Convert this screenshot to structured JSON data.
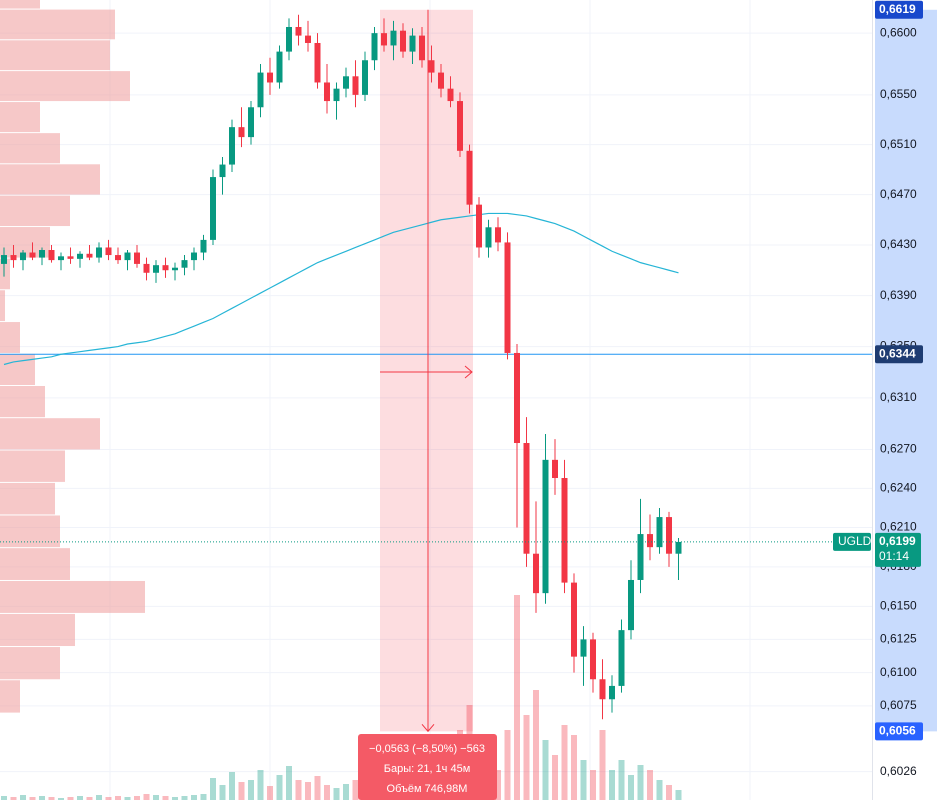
{
  "chart_data": {
    "type": "candlestick",
    "symbol": "UGLD",
    "log_scale": true,
    "grid": true,
    "ylim": [
      0.6005,
      0.6627
    ],
    "yticks": [
      {
        "value": 0.66,
        "label": "0,6600"
      },
      {
        "value": 0.655,
        "label": "0,6550"
      },
      {
        "value": 0.651,
        "label": "0,6510"
      },
      {
        "value": 0.647,
        "label": "0,6470"
      },
      {
        "value": 0.643,
        "label": "0,6430"
      },
      {
        "value": 0.639,
        "label": "0,6390"
      },
      {
        "value": 0.635,
        "label": "0,6350"
      },
      {
        "value": 0.631,
        "label": "0,6310"
      },
      {
        "value": 0.627,
        "label": "0,6270"
      },
      {
        "value": 0.624,
        "label": "0,6240"
      },
      {
        "value": 0.621,
        "label": "0,6210"
      },
      {
        "value": 0.618,
        "label": "0,6180"
      },
      {
        "value": 0.615,
        "label": "0,6150"
      },
      {
        "value": 0.6125,
        "label": "0,6125"
      },
      {
        "value": 0.61,
        "label": "0,6100"
      },
      {
        "value": 0.6075,
        "label": "0,6075"
      },
      {
        "value": 0.6026,
        "label": "0,6026"
      }
    ],
    "up_color": "#089981",
    "down_color": "#f23645",
    "candles": [
      [
        0.6415,
        0.6428,
        0.6405,
        0.6422
      ],
      [
        0.6422,
        0.643,
        0.6412,
        0.6418
      ],
      [
        0.6418,
        0.6426,
        0.641,
        0.6424
      ],
      [
        0.6424,
        0.6432,
        0.6418,
        0.642
      ],
      [
        0.642,
        0.6428,
        0.6414,
        0.6426
      ],
      [
        0.6426,
        0.643,
        0.6416,
        0.6418
      ],
      [
        0.6418,
        0.6424,
        0.641,
        0.6421
      ],
      [
        0.6421,
        0.6428,
        0.6415,
        0.6419
      ],
      [
        0.6419,
        0.6425,
        0.6412,
        0.6423
      ],
      [
        0.6423,
        0.643,
        0.6418,
        0.642
      ],
      [
        0.642,
        0.6432,
        0.6416,
        0.6428
      ],
      [
        0.6428,
        0.6434,
        0.6418,
        0.6422
      ],
      [
        0.6422,
        0.6428,
        0.6415,
        0.6418
      ],
      [
        0.6418,
        0.6426,
        0.641,
        0.6424
      ],
      [
        0.6424,
        0.643,
        0.6412,
        0.6415
      ],
      [
        0.6415,
        0.642,
        0.6402,
        0.6408
      ],
      [
        0.6408,
        0.6418,
        0.64,
        0.6414
      ],
      [
        0.6414,
        0.642,
        0.6404,
        0.641
      ],
      [
        0.641,
        0.6416,
        0.6402,
        0.6412
      ],
      [
        0.6412,
        0.6422,
        0.6406,
        0.6418
      ],
      [
        0.6418,
        0.6428,
        0.641,
        0.6424
      ],
      [
        0.6424,
        0.6438,
        0.6418,
        0.6434
      ],
      [
        0.6434,
        0.649,
        0.643,
        0.6484
      ],
      [
        0.6484,
        0.65,
        0.647,
        0.6494
      ],
      [
        0.6494,
        0.653,
        0.6488,
        0.6524
      ],
      [
        0.6524,
        0.654,
        0.6508,
        0.6516
      ],
      [
        0.6516,
        0.6545,
        0.651,
        0.654
      ],
      [
        0.654,
        0.6575,
        0.6532,
        0.6568
      ],
      [
        0.6568,
        0.658,
        0.655,
        0.656
      ],
      [
        0.656,
        0.659,
        0.6555,
        0.6585
      ],
      [
        0.6585,
        0.6612,
        0.6578,
        0.6605
      ],
      [
        0.6605,
        0.6615,
        0.659,
        0.6598
      ],
      [
        0.6598,
        0.661,
        0.6585,
        0.6592
      ],
      [
        0.6592,
        0.66,
        0.6555,
        0.656
      ],
      [
        0.656,
        0.6575,
        0.6535,
        0.6545
      ],
      [
        0.6545,
        0.656,
        0.653,
        0.6555
      ],
      [
        0.6555,
        0.6572,
        0.6548,
        0.6565
      ],
      [
        0.6565,
        0.6578,
        0.654,
        0.655
      ],
      [
        0.655,
        0.6585,
        0.6545,
        0.6578
      ],
      [
        0.6578,
        0.6605,
        0.657,
        0.66
      ],
      [
        0.66,
        0.6612,
        0.6585,
        0.659
      ],
      [
        0.659,
        0.661,
        0.6578,
        0.6602
      ],
      [
        0.6602,
        0.6608,
        0.658,
        0.6585
      ],
      [
        0.6585,
        0.6604,
        0.6575,
        0.6598
      ],
      [
        0.6598,
        0.6605,
        0.6572,
        0.6578
      ],
      [
        0.6578,
        0.659,
        0.656,
        0.6568
      ],
      [
        0.6568,
        0.6575,
        0.6548,
        0.6555
      ],
      [
        0.6555,
        0.6565,
        0.654,
        0.6545
      ],
      [
        0.6545,
        0.6552,
        0.65,
        0.6505
      ],
      [
        0.6505,
        0.651,
        0.6455,
        0.6462
      ],
      [
        0.6462,
        0.6468,
        0.642,
        0.6428
      ],
      [
        0.6428,
        0.645,
        0.642,
        0.6444
      ],
      [
        0.6444,
        0.6452,
        0.6425,
        0.6432
      ],
      [
        0.6432,
        0.644,
        0.634,
        0.6345
      ],
      [
        0.6345,
        0.6352,
        0.621,
        0.6275
      ],
      [
        0.6275,
        0.6295,
        0.618,
        0.619
      ],
      [
        0.619,
        0.623,
        0.6145,
        0.616
      ],
      [
        0.616,
        0.6282,
        0.6152,
        0.6262
      ],
      [
        0.6262,
        0.6278,
        0.6235,
        0.6248
      ],
      [
        0.6248,
        0.6262,
        0.616,
        0.6168
      ],
      [
        0.6168,
        0.6175,
        0.61,
        0.6112
      ],
      [
        0.6112,
        0.6135,
        0.609,
        0.6125
      ],
      [
        0.6125,
        0.613,
        0.6085,
        0.6095
      ],
      [
        0.6095,
        0.611,
        0.6065,
        0.608
      ],
      [
        0.608,
        0.6098,
        0.607,
        0.609
      ],
      [
        0.609,
        0.614,
        0.6085,
        0.6132
      ],
      [
        0.6132,
        0.6185,
        0.6125,
        0.617
      ],
      [
        0.617,
        0.6232,
        0.616,
        0.6205
      ],
      [
        0.6205,
        0.622,
        0.6185,
        0.6195
      ],
      [
        0.6195,
        0.6225,
        0.619,
        0.6218
      ],
      [
        0.6218,
        0.6222,
        0.618,
        0.619
      ],
      [
        0.619,
        0.6202,
        0.617,
        0.6199
      ]
    ],
    "volumes": [
      4,
      3,
      5,
      3,
      4,
      3,
      2,
      3,
      4,
      3,
      5,
      3,
      4,
      3,
      4,
      6,
      5,
      4,
      3,
      4,
      5,
      6,
      22,
      15,
      28,
      18,
      20,
      30,
      14,
      25,
      34,
      20,
      18,
      24,
      15,
      12,
      16,
      20,
      22,
      26,
      12,
      18,
      14,
      10,
      16,
      20,
      14,
      18,
      70,
      95,
      40,
      25,
      30,
      70,
      205,
      85,
      110,
      60,
      45,
      75,
      65,
      40,
      30,
      70,
      30,
      40,
      25,
      35,
      30,
      20,
      15,
      10
    ],
    "moving_average": {
      "color": "#26b5d6",
      "values": [
        0.6336,
        0.6338,
        0.6339,
        0.634,
        0.6341,
        0.6342,
        0.6344,
        0.6345,
        0.6346,
        0.6347,
        0.6348,
        0.6349,
        0.635,
        0.6352,
        0.6353,
        0.6354,
        0.6356,
        0.6358,
        0.636,
        0.6363,
        0.6366,
        0.6369,
        0.6372,
        0.6376,
        0.638,
        0.6384,
        0.6388,
        0.6392,
        0.6396,
        0.64,
        0.6404,
        0.6408,
        0.6412,
        0.6416,
        0.6419,
        0.6422,
        0.6425,
        0.6428,
        0.6431,
        0.6434,
        0.6437,
        0.644,
        0.6442,
        0.6444,
        0.6446,
        0.6448,
        0.645,
        0.6451,
        0.6452,
        0.6453,
        0.6454,
        0.6455,
        0.6455,
        0.6455,
        0.6454,
        0.6453,
        0.6451,
        0.6449,
        0.6447,
        0.6444,
        0.6441,
        0.6437,
        0.6433,
        0.6429,
        0.6425,
        0.6422,
        0.6419,
        0.6416,
        0.6414,
        0.6412,
        0.641,
        0.6408
      ]
    },
    "volume_profile": {
      "color": "#ef9a9a",
      "prices": [
        0.607,
        0.6095,
        0.612,
        0.6145,
        0.617,
        0.6195,
        0.622,
        0.6245,
        0.627,
        0.6295,
        0.632,
        0.6345,
        0.637,
        0.6395,
        0.642,
        0.6445,
        0.647,
        0.6495,
        0.652,
        0.6545,
        0.657,
        0.6595,
        0.662
      ],
      "values": [
        20,
        60,
        75,
        145,
        70,
        60,
        55,
        65,
        100,
        45,
        35,
        20,
        5,
        10,
        50,
        70,
        100,
        60,
        40,
        130,
        110,
        115,
        40
      ]
    },
    "horizontal_line": {
      "value": 0.6344,
      "label": "0,6344",
      "color": "#2196f3"
    },
    "last_price": {
      "value": 0.6199,
      "label": "0,6199",
      "countdown": "01:14"
    },
    "measure": {
      "top": {
        "value": 0.6619,
        "label": "0,6619"
      },
      "bottom": {
        "value": 0.6056,
        "label": "0,6056"
      },
      "change": "−0,0563 (−8,50%) −563",
      "bars": "Бары: 21, 1ч 45м",
      "volume": "Объём 746,98M"
    }
  }
}
